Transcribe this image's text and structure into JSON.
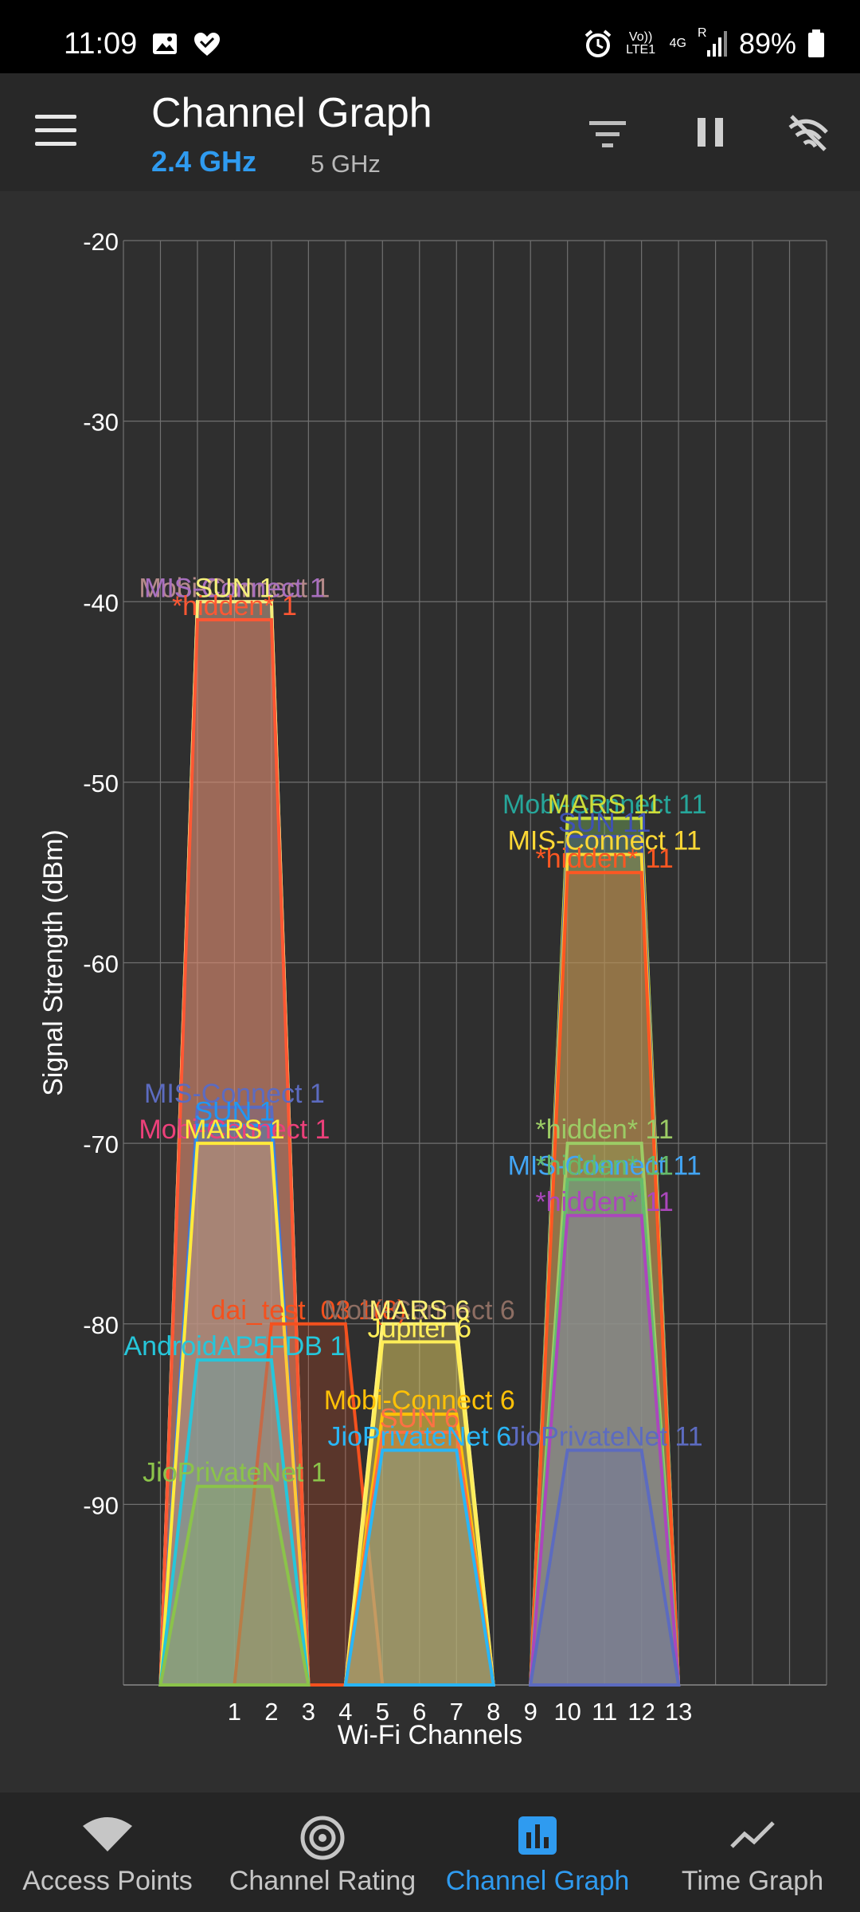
{
  "status": {
    "time": "11:09",
    "volte": "Vo)) LTE1",
    "network": "4G",
    "roaming": "R",
    "battery": "89%"
  },
  "header": {
    "title": "Channel Graph",
    "band_active": "2.4 GHz",
    "band_inactive": "5 GHz"
  },
  "colors": {
    "accent": "#2f9bf0",
    "background": "#2f2f2f",
    "grid": "#6a6a6a"
  },
  "nav": [
    {
      "label": "Access Points",
      "icon": "wifi-icon"
    },
    {
      "label": "Channel Rating",
      "icon": "broadcast-icon"
    },
    {
      "label": "Channel Graph",
      "icon": "bar-chart-icon",
      "active": true
    },
    {
      "label": "Time Graph",
      "icon": "line-chart-icon"
    }
  ],
  "chart_data": {
    "type": "area",
    "xlabel": "Wi-Fi Channels",
    "ylabel": "Signal Strength (dBm)",
    "ylim": [
      -100,
      -20
    ],
    "yticks": [
      -20,
      -30,
      -40,
      -50,
      -60,
      -70,
      -80,
      -90
    ],
    "xticks": [
      1,
      2,
      3,
      4,
      5,
      6,
      7,
      8,
      9,
      10,
      11,
      12,
      13
    ],
    "grid": true,
    "series": [
      {
        "name": "Mobi-Connect 1",
        "channel": 1,
        "dbm": -40,
        "color": "#b58a8a"
      },
      {
        "name": "MIS-Connect 1",
        "channel": 1,
        "dbm": -40,
        "color": "#a86fbf"
      },
      {
        "name": "SUN 1",
        "channel": 1,
        "dbm": -40,
        "color": "#f5f07a"
      },
      {
        "name": "*hidden* 1",
        "channel": 1,
        "dbm": -41,
        "color": "#ff5733"
      },
      {
        "name": "MIS-Connect 1",
        "channel": 1,
        "dbm": -68,
        "color": "#5c6bc0"
      },
      {
        "name": "SUN 1",
        "channel": 1,
        "dbm": -69,
        "color": "#2196f3"
      },
      {
        "name": "Mobi-Connect 1",
        "channel": 1,
        "dbm": -70,
        "color": "#ec407a"
      },
      {
        "name": "MARS 1",
        "channel": 1,
        "dbm": -70,
        "color": "#ffeb3b"
      },
      {
        "name": "dai_test_03 1(8)",
        "channel": 3,
        "dbm": -80,
        "color": "#f4511e"
      },
      {
        "name": "AndroidAP5FDB 1",
        "channel": 1,
        "dbm": -82,
        "color": "#26c6da"
      },
      {
        "name": "JioPrivateNet 1",
        "channel": 1,
        "dbm": -89,
        "color": "#8bc34a"
      },
      {
        "name": "Mobi-Connect 6",
        "channel": 6,
        "dbm": -80,
        "color": "#8d6e63"
      },
      {
        "name": "MARS 6",
        "channel": 6,
        "dbm": -80,
        "color": "#fff176"
      },
      {
        "name": "Jupiter 6",
        "channel": 6,
        "dbm": -81,
        "color": "#ffee58"
      },
      {
        "name": "Mobi-Connect 6",
        "channel": 6,
        "dbm": -85,
        "color": "#ffc107"
      },
      {
        "name": "SUN 6",
        "channel": 6,
        "dbm": -86,
        "color": "#ff7043"
      },
      {
        "name": "JioPrivateNet 6",
        "channel": 6,
        "dbm": -87,
        "color": "#29b6f6"
      },
      {
        "name": "Mobi-Connect 11",
        "channel": 11,
        "dbm": -52,
        "color": "#26a69a"
      },
      {
        "name": "MARS 11",
        "channel": 11,
        "dbm": -52,
        "color": "#cddc39"
      },
      {
        "name": "SUN 11",
        "channel": 11,
        "dbm": -53,
        "color": "#3f51b5"
      },
      {
        "name": "MIS-Connect 11",
        "channel": 11,
        "dbm": -54,
        "color": "#fdd835"
      },
      {
        "name": "*hidden* 11",
        "channel": 11,
        "dbm": -55,
        "color": "#ff5722"
      },
      {
        "name": "*hidden* 11",
        "channel": 11,
        "dbm": -70,
        "color": "#9ccc65"
      },
      {
        "name": "MIS-Connect 11",
        "channel": 11,
        "dbm": -72,
        "color": "#42a5f5"
      },
      {
        "name": "*hidden* 11",
        "channel": 11,
        "dbm": -72,
        "color": "#66bb6a"
      },
      {
        "name": "*hidden* 11",
        "channel": 11,
        "dbm": -74,
        "color": "#ab47bc"
      },
      {
        "name": "JioPrivateNet 11",
        "channel": 11,
        "dbm": -87,
        "color": "#5c6bc0"
      }
    ]
  }
}
